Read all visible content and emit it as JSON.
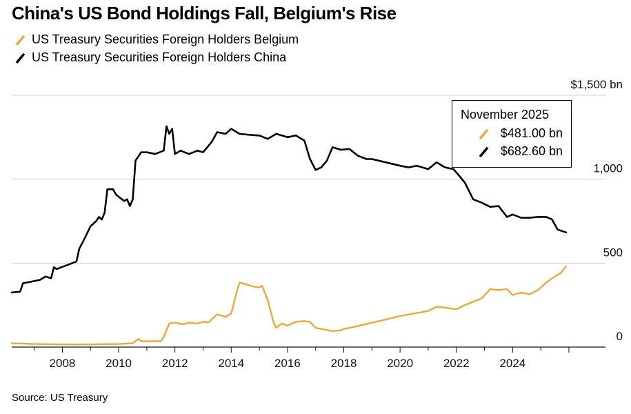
{
  "chart_data": {
    "type": "line",
    "title": "China's US Bond Holdings Fall, Belgium's Rise",
    "xlabel": "",
    "ylabel": "",
    "xlim": [
      2006.2,
      2027.3
    ],
    "ylim": [
      0,
      1500
    ],
    "unit": "bn USD",
    "y_ticks": [
      {
        "value": 0,
        "label": "0"
      },
      {
        "value": 500,
        "label": "500"
      },
      {
        "value": 1000,
        "label": "1,000"
      },
      {
        "value": 1500,
        "label": "$1,500 bn"
      }
    ],
    "x_ticks": [
      {
        "value": 2008,
        "label": "2008"
      },
      {
        "value": 2010,
        "label": "2010"
      },
      {
        "value": 2012,
        "label": "2012"
      },
      {
        "value": 2014,
        "label": "2014"
      },
      {
        "value": 2016,
        "label": "2016"
      },
      {
        "value": 2018,
        "label": "2018"
      },
      {
        "value": 2020,
        "label": "2020"
      },
      {
        "value": 2022,
        "label": "2022"
      },
      {
        "value": 2024,
        "label": "2024"
      }
    ],
    "series": [
      {
        "name": "US Treasury Securities Foreign Holders Belgium",
        "color": "#e8a93c",
        "points": [
          [
            2006.2,
            22
          ],
          [
            2007.0,
            18
          ],
          [
            2008.0,
            16
          ],
          [
            2009.0,
            16
          ],
          [
            2010.0,
            18
          ],
          [
            2010.5,
            22
          ],
          [
            2010.7,
            48
          ],
          [
            2010.8,
            35
          ],
          [
            2011.5,
            35
          ],
          [
            2011.6,
            60
          ],
          [
            2011.8,
            140
          ],
          [
            2012.0,
            145
          ],
          [
            2012.3,
            135
          ],
          [
            2012.5,
            145
          ],
          [
            2012.8,
            140
          ],
          [
            2013.0,
            150
          ],
          [
            2013.2,
            148
          ],
          [
            2013.5,
            195
          ],
          [
            2013.8,
            180
          ],
          [
            2014.0,
            200
          ],
          [
            2014.2,
            330
          ],
          [
            2014.3,
            385
          ],
          [
            2014.5,
            375
          ],
          [
            2014.8,
            360
          ],
          [
            2015.0,
            355
          ],
          [
            2015.1,
            365
          ],
          [
            2015.3,
            280
          ],
          [
            2015.5,
            150
          ],
          [
            2015.6,
            115
          ],
          [
            2015.8,
            140
          ],
          [
            2016.0,
            128
          ],
          [
            2016.3,
            150
          ],
          [
            2016.6,
            155
          ],
          [
            2016.8,
            150
          ],
          [
            2017.0,
            115
          ],
          [
            2017.3,
            105
          ],
          [
            2017.6,
            95
          ],
          [
            2017.9,
            100
          ],
          [
            2018.0,
            108
          ],
          [
            2018.5,
            125
          ],
          [
            2019.0,
            145
          ],
          [
            2019.5,
            165
          ],
          [
            2020.0,
            185
          ],
          [
            2020.5,
            200
          ],
          [
            2021.0,
            215
          ],
          [
            2021.3,
            240
          ],
          [
            2021.6,
            235
          ],
          [
            2022.0,
            225
          ],
          [
            2022.3,
            250
          ],
          [
            2022.6,
            270
          ],
          [
            2022.9,
            290
          ],
          [
            2023.2,
            345
          ],
          [
            2023.5,
            340
          ],
          [
            2023.8,
            345
          ],
          [
            2024.0,
            310
          ],
          [
            2024.3,
            325
          ],
          [
            2024.6,
            315
          ],
          [
            2024.9,
            340
          ],
          [
            2025.2,
            385
          ],
          [
            2025.5,
            420
          ],
          [
            2025.7,
            440
          ],
          [
            2025.9,
            481
          ]
        ]
      },
      {
        "name": "US Treasury Securities Foreign Holders China",
        "color": "#000000",
        "points": [
          [
            2006.2,
            325
          ],
          [
            2006.5,
            330
          ],
          [
            2006.6,
            380
          ],
          [
            2006.9,
            390
          ],
          [
            2007.2,
            400
          ],
          [
            2007.4,
            420
          ],
          [
            2007.6,
            410
          ],
          [
            2007.7,
            475
          ],
          [
            2007.8,
            465
          ],
          [
            2008.0,
            478
          ],
          [
            2008.2,
            490
          ],
          [
            2008.5,
            510
          ],
          [
            2008.6,
            585
          ],
          [
            2008.8,
            650
          ],
          [
            2009.0,
            720
          ],
          [
            2009.2,
            750
          ],
          [
            2009.3,
            775
          ],
          [
            2009.4,
            760
          ],
          [
            2009.5,
            800
          ],
          [
            2009.6,
            940
          ],
          [
            2009.8,
            940
          ],
          [
            2009.9,
            910
          ],
          [
            2010.0,
            895
          ],
          [
            2010.2,
            870
          ],
          [
            2010.3,
            880
          ],
          [
            2010.4,
            840
          ],
          [
            2010.5,
            880
          ],
          [
            2010.6,
            1110
          ],
          [
            2010.8,
            1160
          ],
          [
            2011.0,
            1160
          ],
          [
            2011.3,
            1150
          ],
          [
            2011.6,
            1170
          ],
          [
            2011.7,
            1315
          ],
          [
            2011.8,
            1270
          ],
          [
            2011.9,
            1300
          ],
          [
            2012.0,
            1150
          ],
          [
            2012.2,
            1170
          ],
          [
            2012.5,
            1150
          ],
          [
            2012.8,
            1170
          ],
          [
            2013.0,
            1160
          ],
          [
            2013.3,
            1220
          ],
          [
            2013.5,
            1280
          ],
          [
            2013.8,
            1270
          ],
          [
            2014.0,
            1300
          ],
          [
            2014.3,
            1270
          ],
          [
            2014.6,
            1265
          ],
          [
            2015.0,
            1260
          ],
          [
            2015.3,
            1240
          ],
          [
            2015.6,
            1270
          ],
          [
            2016.0,
            1250
          ],
          [
            2016.3,
            1260
          ],
          [
            2016.6,
            1230
          ],
          [
            2016.8,
            1120
          ],
          [
            2017.0,
            1055
          ],
          [
            2017.2,
            1070
          ],
          [
            2017.4,
            1110
          ],
          [
            2017.6,
            1190
          ],
          [
            2017.9,
            1175
          ],
          [
            2018.2,
            1180
          ],
          [
            2018.5,
            1140
          ],
          [
            2018.8,
            1120
          ],
          [
            2019.0,
            1120
          ],
          [
            2019.5,
            1100
          ],
          [
            2020.0,
            1080
          ],
          [
            2020.3,
            1070
          ],
          [
            2020.6,
            1080
          ],
          [
            2021.0,
            1060
          ],
          [
            2021.3,
            1100
          ],
          [
            2021.6,
            1070
          ],
          [
            2021.9,
            1060
          ],
          [
            2022.0,
            1040
          ],
          [
            2022.3,
            980
          ],
          [
            2022.6,
            880
          ],
          [
            2022.9,
            860
          ],
          [
            2023.2,
            835
          ],
          [
            2023.5,
            840
          ],
          [
            2023.8,
            775
          ],
          [
            2024.0,
            790
          ],
          [
            2024.3,
            770
          ],
          [
            2024.6,
            770
          ],
          [
            2024.9,
            775
          ],
          [
            2025.2,
            775
          ],
          [
            2025.4,
            760
          ],
          [
            2025.6,
            700
          ],
          [
            2025.9,
            683
          ]
        ]
      }
    ],
    "tooltip": {
      "date": "November 2025",
      "belgium": "$481.00 bn",
      "china": "$682.60 bn"
    },
    "source": "Source: US Treasury",
    "grid": true,
    "legend_position": "top-left"
  }
}
